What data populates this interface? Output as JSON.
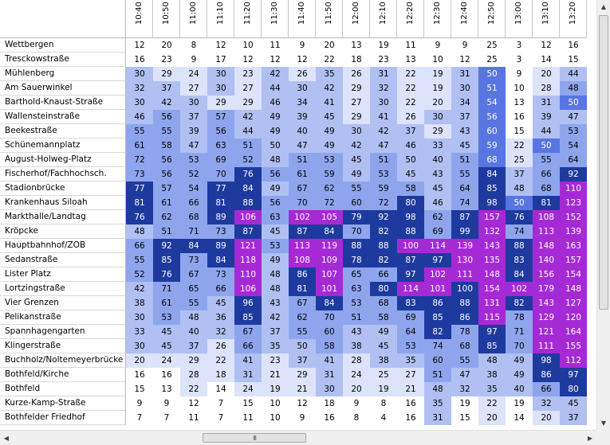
{
  "colors": {
    "level_0": "#ffffff",
    "level_1": "#dde3fb",
    "level_2": "#b0c0f2",
    "level_3": "#8ea5ee",
    "level_4": "#6e88ea",
    "level_5": "#5875e2",
    "level_6": "#4769de",
    "level_7": "#1e3a9e",
    "level_8": "#a52ad5",
    "level_9": "#a02cd8"
  },
  "times": [
    "10:40",
    "10:50",
    "11:00",
    "11:10",
    "11:20",
    "11:30",
    "11:40",
    "11:50",
    "12:00",
    "12:10",
    "12:20",
    "12:30",
    "12:40",
    "12:50",
    "13:00",
    "13:10",
    "13:20"
  ],
  "stops": [
    {
      "name": "Wettbergen",
      "values": [
        12,
        20,
        8,
        12,
        10,
        11,
        9,
        20,
        13,
        19,
        11,
        9,
        9,
        25,
        3,
        12,
        16
      ],
      "levels": [
        0,
        0,
        0,
        0,
        0,
        0,
        0,
        0,
        0,
        0,
        0,
        0,
        0,
        0,
        0,
        0,
        0
      ]
    },
    {
      "name": "Tresckowstraße",
      "values": [
        16,
        23,
        9,
        17,
        12,
        12,
        12,
        22,
        18,
        23,
        13,
        10,
        12,
        25,
        3,
        14,
        15
      ],
      "levels": [
        0,
        0,
        0,
        0,
        0,
        0,
        0,
        0,
        0,
        0,
        0,
        0,
        0,
        0,
        0,
        0,
        0
      ]
    },
    {
      "name": "Mühlenberg",
      "values": [
        30,
        29,
        24,
        30,
        23,
        42,
        26,
        35,
        26,
        31,
        22,
        19,
        31,
        50,
        9,
        20,
        44
      ],
      "levels": [
        2,
        1,
        1,
        2,
        1,
        2,
        1,
        2,
        1,
        2,
        1,
        1,
        2,
        5,
        0,
        1,
        2
      ]
    },
    {
      "name": "Am Sauerwinkel",
      "values": [
        32,
        37,
        27,
        30,
        27,
        44,
        30,
        42,
        29,
        32,
        22,
        19,
        30,
        51,
        10,
        28,
        48
      ],
      "levels": [
        2,
        2,
        1,
        2,
        1,
        2,
        2,
        2,
        1,
        2,
        1,
        1,
        2,
        5,
        0,
        1,
        3
      ]
    },
    {
      "name": "Barthold-Knaust-Straße",
      "values": [
        30,
        42,
        30,
        29,
        29,
        46,
        34,
        41,
        27,
        30,
        22,
        20,
        34,
        54,
        13,
        31,
        50
      ],
      "levels": [
        2,
        2,
        2,
        1,
        1,
        2,
        2,
        2,
        1,
        2,
        1,
        1,
        2,
        5,
        0,
        2,
        5
      ]
    },
    {
      "name": "Wallensteinstraße",
      "values": [
        46,
        56,
        37,
        57,
        42,
        49,
        39,
        45,
        29,
        41,
        26,
        30,
        37,
        56,
        16,
        39,
        47
      ],
      "levels": [
        2,
        3,
        2,
        3,
        2,
        2,
        2,
        2,
        1,
        2,
        1,
        2,
        2,
        5,
        0,
        2,
        2
      ]
    },
    {
      "name": "Beekestraße",
      "values": [
        55,
        55,
        39,
        56,
        44,
        49,
        40,
        49,
        30,
        42,
        37,
        29,
        43,
        60,
        15,
        44,
        53
      ],
      "levels": [
        3,
        3,
        2,
        3,
        2,
        2,
        2,
        2,
        2,
        2,
        2,
        1,
        2,
        5,
        0,
        2,
        3
      ]
    },
    {
      "name": "Schünemannplatz",
      "values": [
        61,
        58,
        47,
        63,
        51,
        50,
        47,
        49,
        42,
        47,
        46,
        33,
        45,
        59,
        22,
        50,
        54
      ],
      "levels": [
        3,
        3,
        2,
        3,
        3,
        2,
        2,
        2,
        2,
        2,
        2,
        2,
        2,
        5,
        1,
        5,
        3
      ]
    },
    {
      "name": "August-Holweg-Platz",
      "values": [
        72,
        56,
        53,
        69,
        52,
        48,
        51,
        53,
        45,
        51,
        50,
        40,
        51,
        68,
        25,
        55,
        64
      ],
      "levels": [
        3,
        3,
        3,
        3,
        3,
        2,
        3,
        3,
        2,
        3,
        2,
        2,
        3,
        5,
        1,
        3,
        3
      ]
    },
    {
      "name": "Fischerhof/Fachhochsch.",
      "values": [
        73,
        56,
        52,
        70,
        76,
        56,
        61,
        59,
        49,
        53,
        45,
        43,
        55,
        84,
        37,
        66,
        92
      ],
      "levels": [
        3,
        3,
        3,
        3,
        7,
        3,
        3,
        3,
        2,
        3,
        2,
        2,
        3,
        7,
        2,
        3,
        7
      ]
    },
    {
      "name": "Stadionbrücke",
      "values": [
        77,
        57,
        54,
        77,
        84,
        49,
        67,
        62,
        55,
        59,
        58,
        45,
        64,
        85,
        48,
        68,
        110
      ],
      "levels": [
        7,
        3,
        3,
        7,
        7,
        2,
        3,
        3,
        3,
        3,
        3,
        2,
        3,
        7,
        2,
        3,
        8
      ]
    },
    {
      "name": "Krankenhaus Siloah",
      "values": [
        81,
        61,
        66,
        81,
        88,
        56,
        70,
        72,
        60,
        72,
        80,
        46,
        74,
        98,
        50,
        81,
        123
      ],
      "levels": [
        7,
        3,
        3,
        7,
        7,
        3,
        3,
        3,
        3,
        3,
        7,
        2,
        3,
        7,
        5,
        7,
        8
      ]
    },
    {
      "name": "Markthalle/Landtag",
      "values": [
        76,
        62,
        68,
        89,
        106,
        63,
        102,
        105,
        79,
        92,
        98,
        62,
        87,
        157,
        76,
        108,
        152
      ],
      "levels": [
        7,
        3,
        3,
        7,
        8,
        3,
        8,
        8,
        7,
        7,
        7,
        3,
        7,
        8,
        7,
        8,
        8
      ]
    },
    {
      "name": "Kröpcke",
      "values": [
        48,
        51,
        71,
        73,
        87,
        45,
        87,
        84,
        70,
        82,
        88,
        69,
        99,
        132,
        74,
        113,
        139
      ],
      "levels": [
        2,
        3,
        3,
        3,
        7,
        2,
        7,
        7,
        3,
        7,
        7,
        3,
        7,
        8,
        3,
        8,
        8
      ]
    },
    {
      "name": "Hauptbahnhof/ZOB",
      "values": [
        66,
        92,
        84,
        89,
        121,
        53,
        113,
        119,
        88,
        88,
        100,
        114,
        139,
        143,
        88,
        148,
        163
      ],
      "levels": [
        3,
        7,
        7,
        7,
        8,
        3,
        8,
        8,
        7,
        7,
        8,
        8,
        8,
        8,
        7,
        8,
        8
      ]
    },
    {
      "name": "Sedanstraße",
      "values": [
        55,
        85,
        73,
        84,
        118,
        49,
        108,
        109,
        78,
        82,
        87,
        97,
        130,
        135,
        83,
        140,
        157
      ],
      "levels": [
        3,
        7,
        3,
        7,
        8,
        2,
        8,
        8,
        7,
        7,
        7,
        7,
        8,
        8,
        7,
        8,
        8
      ]
    },
    {
      "name": "Lister Platz",
      "values": [
        52,
        76,
        67,
        73,
        110,
        48,
        86,
        107,
        65,
        66,
        97,
        102,
        111,
        148,
        84,
        156,
        154
      ],
      "levels": [
        3,
        7,
        3,
        3,
        8,
        2,
        7,
        8,
        3,
        3,
        7,
        8,
        8,
        8,
        7,
        8,
        8
      ]
    },
    {
      "name": "Lortzingstraße",
      "values": [
        42,
        71,
        65,
        66,
        106,
        48,
        81,
        101,
        63,
        80,
        114,
        101,
        100,
        154,
        102,
        179,
        148
      ],
      "levels": [
        2,
        3,
        3,
        3,
        8,
        2,
        7,
        8,
        3,
        7,
        8,
        8,
        7,
        8,
        8,
        9,
        8
      ]
    },
    {
      "name": "Vier Grenzen",
      "values": [
        38,
        61,
        55,
        45,
        96,
        43,
        67,
        84,
        53,
        68,
        83,
        86,
        88,
        131,
        82,
        143,
        127
      ],
      "levels": [
        2,
        3,
        3,
        2,
        7,
        2,
        3,
        7,
        3,
        3,
        7,
        7,
        7,
        8,
        7,
        8,
        8
      ]
    },
    {
      "name": "Pelikanstraße",
      "values": [
        30,
        53,
        48,
        36,
        85,
        42,
        62,
        70,
        51,
        58,
        69,
        85,
        86,
        115,
        78,
        129,
        120
      ],
      "levels": [
        2,
        3,
        2,
        2,
        7,
        2,
        3,
        3,
        3,
        3,
        3,
        7,
        7,
        8,
        3,
        8,
        8
      ]
    },
    {
      "name": "Spannhagengarten",
      "values": [
        33,
        45,
        40,
        32,
        67,
        37,
        55,
        60,
        43,
        49,
        64,
        82,
        78,
        97,
        71,
        121,
        164
      ],
      "levels": [
        2,
        2,
        2,
        2,
        3,
        2,
        3,
        3,
        2,
        2,
        3,
        7,
        3,
        7,
        3,
        8,
        8
      ]
    },
    {
      "name": "Klingerstraße",
      "values": [
        30,
        45,
        37,
        26,
        66,
        35,
        50,
        58,
        38,
        45,
        53,
        74,
        68,
        85,
        70,
        111,
        155
      ],
      "levels": [
        2,
        2,
        2,
        1,
        3,
        2,
        2,
        3,
        2,
        2,
        3,
        3,
        3,
        7,
        3,
        8,
        8
      ]
    },
    {
      "name": "Buchholz/Noltemeyerbrücke",
      "values": [
        20,
        24,
        29,
        22,
        41,
        23,
        37,
        41,
        28,
        38,
        35,
        60,
        55,
        48,
        49,
        98,
        112
      ],
      "levels": [
        1,
        1,
        1,
        1,
        2,
        1,
        2,
        2,
        1,
        2,
        2,
        3,
        3,
        2,
        2,
        7,
        8
      ]
    },
    {
      "name": "Bothfeld/Kirche",
      "values": [
        16,
        16,
        28,
        18,
        31,
        21,
        29,
        31,
        24,
        25,
        27,
        51,
        47,
        38,
        49,
        86,
        97
      ],
      "levels": [
        0,
        0,
        1,
        1,
        2,
        1,
        1,
        2,
        1,
        1,
        1,
        3,
        2,
        2,
        2,
        7,
        7
      ]
    },
    {
      "name": "Bothfeld",
      "values": [
        15,
        13,
        22,
        14,
        24,
        19,
        21,
        30,
        20,
        19,
        21,
        48,
        32,
        35,
        40,
        66,
        80
      ],
      "levels": [
        0,
        0,
        1,
        0,
        1,
        1,
        1,
        2,
        1,
        1,
        1,
        2,
        2,
        2,
        2,
        3,
        7
      ]
    },
    {
      "name": "Kurze-Kamp-Straße",
      "values": [
        9,
        9,
        12,
        7,
        15,
        10,
        12,
        18,
        9,
        8,
        16,
        35,
        19,
        22,
        19,
        32,
        45
      ],
      "levels": [
        0,
        0,
        0,
        0,
        0,
        0,
        0,
        0,
        0,
        0,
        0,
        2,
        0,
        1,
        0,
        2,
        2
      ]
    },
    {
      "name": "Bothfelder Friedhof",
      "values": [
        7,
        7,
        11,
        7,
        11,
        10,
        9,
        16,
        8,
        4,
        16,
        31,
        15,
        20,
        14,
        20,
        37
      ],
      "levels": [
        0,
        0,
        0,
        0,
        0,
        0,
        0,
        0,
        0,
        0,
        0,
        2,
        0,
        1,
        0,
        1,
        2
      ]
    }
  ],
  "hscroll_grip": "III"
}
